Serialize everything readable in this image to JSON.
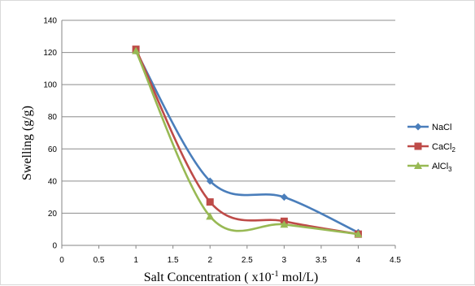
{
  "chart_data": {
    "type": "scatter",
    "xlabel": "Salt Concentration ( x10-1 mol/L)",
    "ylabel": "Swelling (g/g)",
    "xlim": [
      0,
      4.5
    ],
    "ylim": [
      0,
      140
    ],
    "x_ticks": [
      "0",
      "0.5",
      "1",
      "1.5",
      "2",
      "2.5",
      "3",
      "3.5",
      "4",
      "4.5"
    ],
    "y_ticks": [
      "0",
      "20",
      "40",
      "60",
      "80",
      "100",
      "120",
      "140"
    ],
    "grid": "horizontal",
    "legend_position": "right",
    "series": [
      {
        "name": "NaCl",
        "color": "#4a7ebb",
        "marker": "diamond",
        "x": [
          1,
          2,
          3,
          4
        ],
        "y": [
          121,
          40,
          30,
          8
        ]
      },
      {
        "name": "CaCl2",
        "color": "#be4b48",
        "marker": "square",
        "x": [
          1,
          2,
          3,
          4
        ],
        "y": [
          122,
          27,
          15,
          7
        ]
      },
      {
        "name": "AlCl3",
        "color": "#98b954",
        "marker": "triangle",
        "x": [
          1,
          2,
          3,
          4
        ],
        "y": [
          121,
          18,
          13,
          7
        ]
      }
    ]
  }
}
